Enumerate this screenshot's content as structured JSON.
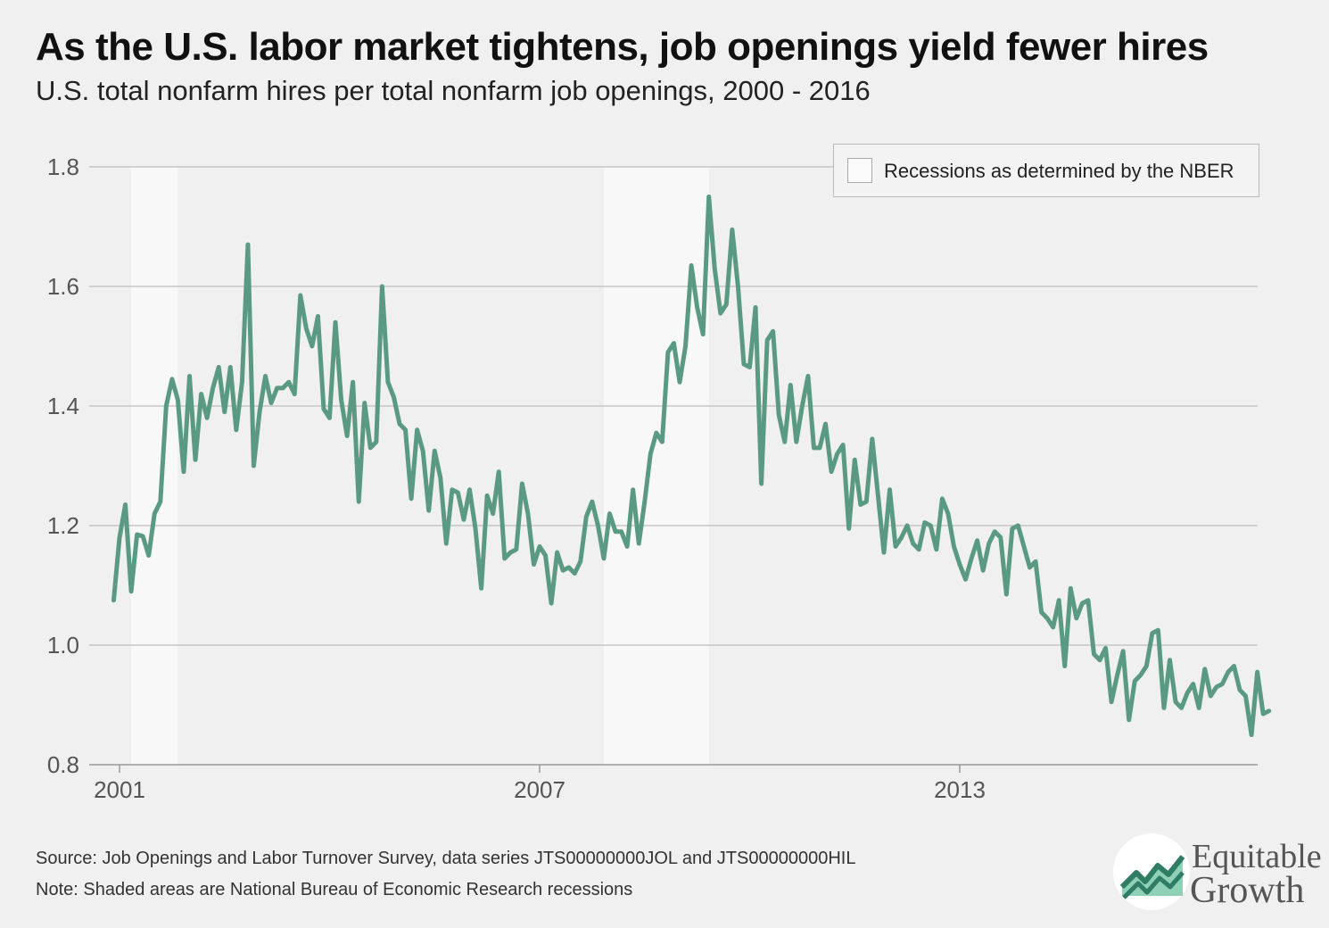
{
  "header": {
    "title": "As the U.S. labor market tightens, job openings yield fewer hires",
    "subtitle": "U.S. total nonfarm hires per total nonfarm job openings, 2000 - 2016"
  },
  "footer": {
    "source": "Source: Job Openings and Labor Turnover Survey, data series JTS00000000JOL and JTS00000000HIL",
    "note": "Note: Shaded areas are National Bureau of Economic Research recessions"
  },
  "logo": {
    "icon": "rising-chart-logo-icon",
    "line1": "Equitable",
    "line2": "Growth",
    "colors": {
      "dark_green": "#2e7d64",
      "light_green": "#8fd1b6",
      "text": "#555555"
    }
  },
  "colors": {
    "line": "#5a9a82",
    "recession_shade": "#f8f8f8",
    "grid": "#bdbdbd",
    "axis": "#999999",
    "background": "#f0f0f0"
  },
  "chart_data": {
    "type": "line",
    "title": "As the U.S. labor market tightens, job openings yield fewer hires",
    "subtitle": "U.S. total nonfarm hires per total nonfarm job openings, 2000 - 2016",
    "xlabel": "",
    "ylabel": "",
    "ylim": [
      0.8,
      1.8
    ],
    "y_ticks": [
      "0.8",
      "1.0",
      "1.2",
      "1.4",
      "1.6",
      "1.8"
    ],
    "x_ticks": [
      "2001",
      "2007",
      "2013"
    ],
    "grid": "horizontal",
    "legend": {
      "position": "top-right",
      "entries": [
        "Recessions as determined by the NBER"
      ]
    },
    "recessions": [
      {
        "start": "2001-03",
        "end": "2001-11"
      },
      {
        "start": "2007-12",
        "end": "2009-06"
      }
    ],
    "series": [
      {
        "start": "2000-12",
        "frequency": "monthly",
        "values": [
          1.075,
          1.18,
          1.235,
          1.09,
          1.185,
          1.182,
          1.15,
          1.22,
          1.24,
          1.4,
          1.445,
          1.41,
          1.29,
          1.45,
          1.31,
          1.42,
          1.38,
          1.43,
          1.465,
          1.39,
          1.465,
          1.36,
          1.44,
          1.67,
          1.3,
          1.39,
          1.45,
          1.405,
          1.43,
          1.43,
          1.44,
          1.42,
          1.585,
          1.53,
          1.5,
          1.55,
          1.395,
          1.38,
          1.54,
          1.41,
          1.35,
          1.44,
          1.24,
          1.405,
          1.33,
          1.34,
          1.6,
          1.44,
          1.415,
          1.37,
          1.36,
          1.245,
          1.36,
          1.325,
          1.225,
          1.325,
          1.28,
          1.17,
          1.26,
          1.255,
          1.21,
          1.26,
          1.195,
          1.095,
          1.25,
          1.22,
          1.29,
          1.145,
          1.155,
          1.16,
          1.27,
          1.22,
          1.135,
          1.165,
          1.15,
          1.07,
          1.155,
          1.125,
          1.13,
          1.12,
          1.14,
          1.215,
          1.24,
          1.2,
          1.145,
          1.22,
          1.19,
          1.19,
          1.165,
          1.26,
          1.17,
          1.24,
          1.32,
          1.355,
          1.34,
          1.49,
          1.505,
          1.44,
          1.5,
          1.635,
          1.565,
          1.52,
          1.75,
          1.63,
          1.555,
          1.57,
          1.695,
          1.6,
          1.47,
          1.465,
          1.565,
          1.27,
          1.51,
          1.525,
          1.385,
          1.34,
          1.435,
          1.34,
          1.4,
          1.45,
          1.33,
          1.33,
          1.37,
          1.29,
          1.32,
          1.335,
          1.195,
          1.31,
          1.235,
          1.24,
          1.345,
          1.25,
          1.155,
          1.26,
          1.165,
          1.18,
          1.2,
          1.17,
          1.16,
          1.205,
          1.2,
          1.16,
          1.245,
          1.22,
          1.165,
          1.135,
          1.11,
          1.145,
          1.175,
          1.125,
          1.17,
          1.19,
          1.18,
          1.085,
          1.195,
          1.2,
          1.165,
          1.13,
          1.14,
          1.055,
          1.045,
          1.03,
          1.075,
          0.965,
          1.095,
          1.045,
          1.07,
          1.075,
          0.985,
          0.975,
          0.995,
          0.905,
          0.95,
          0.99,
          0.875,
          0.94,
          0.95,
          0.965,
          1.02,
          1.025,
          0.895,
          0.975,
          0.905,
          0.895,
          0.92,
          0.935,
          0.895,
          0.96,
          0.915,
          0.93,
          0.935,
          0.955,
          0.965,
          0.925,
          0.915,
          0.85,
          0.955,
          0.885,
          0.89
        ]
      }
    ]
  }
}
